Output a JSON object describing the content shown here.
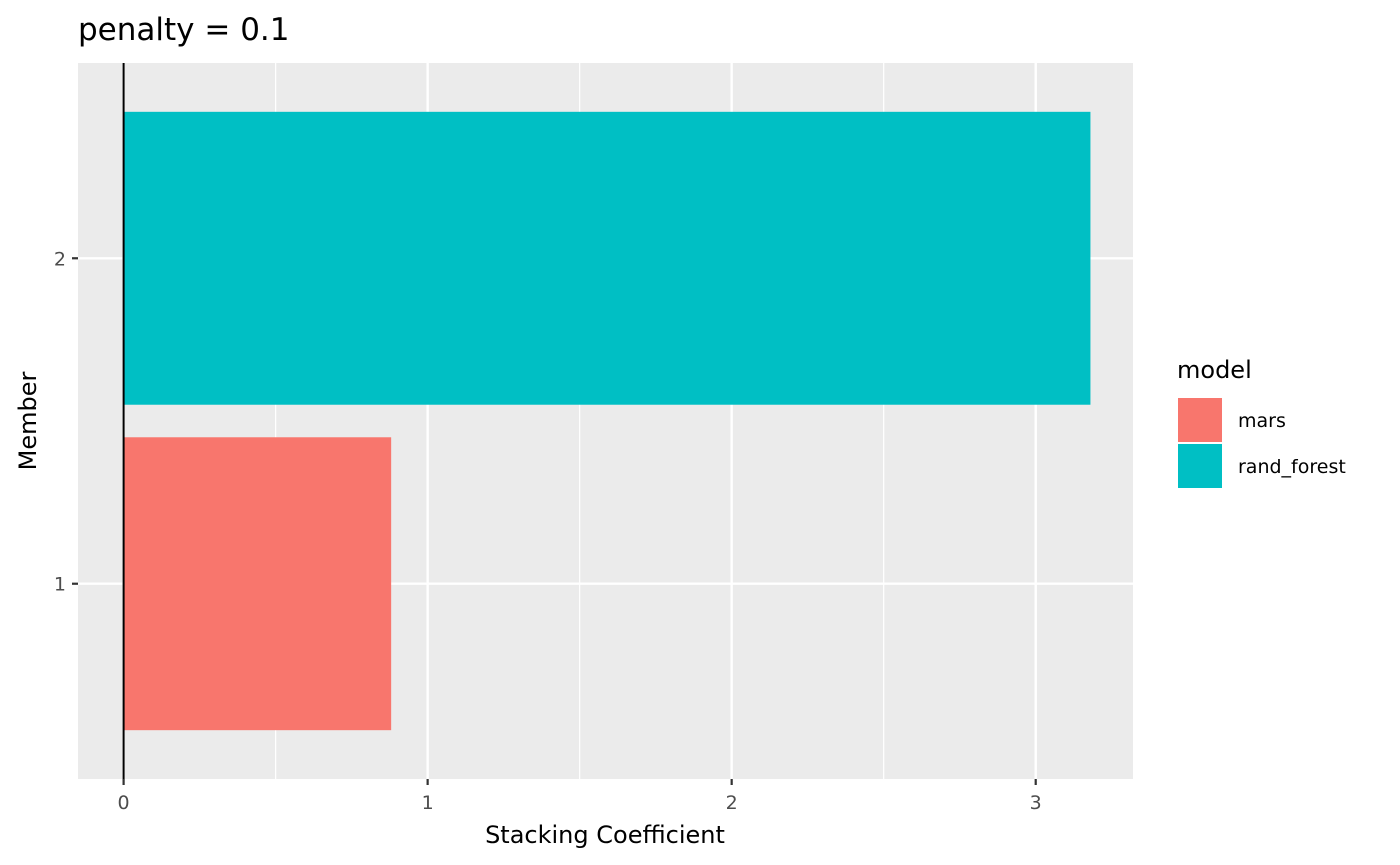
{
  "chart_data": {
    "type": "bar",
    "orientation": "horizontal",
    "title": "penalty = 0.1",
    "xlabel": "Stacking Coefficient",
    "ylabel": "Member",
    "categories": [
      "1",
      "2"
    ],
    "values": [
      0.88,
      3.18
    ],
    "bar_models": [
      "mars",
      "rand_forest"
    ],
    "xlim": [
      -0.15,
      3.32
    ],
    "x_ticks": [
      "0",
      "1",
      "2",
      "3"
    ],
    "x_tick_values": [
      0,
      1,
      2,
      3
    ],
    "vertical_reference_line": 0,
    "grid": true,
    "legend": {
      "title": "model",
      "placement": "right",
      "items": [
        {
          "label": "mars",
          "color": "#F8766D"
        },
        {
          "label": "rand_forest",
          "color": "#00BFC4"
        }
      ]
    },
    "colors": {
      "panel": "#EBEBEB",
      "grid": "#FFFFFF",
      "tick": "#333333"
    }
  }
}
